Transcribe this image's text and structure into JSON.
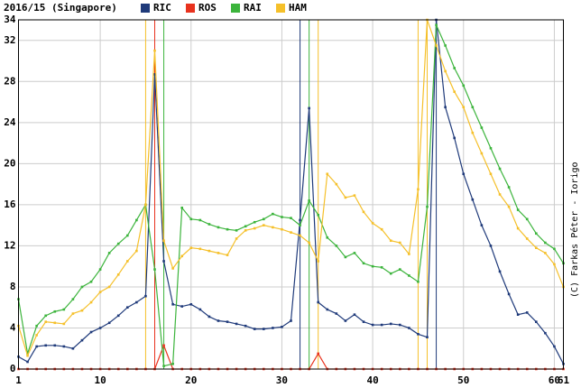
{
  "chart_data": {
    "type": "line",
    "title": "2016/15 (Singapore)",
    "credit": "(C) Farkas Péter - Iorigo",
    "x": [
      1,
      2,
      3,
      4,
      5,
      6,
      7,
      8,
      9,
      10,
      11,
      12,
      13,
      14,
      15,
      16,
      17,
      18,
      19,
      20,
      21,
      22,
      23,
      24,
      25,
      26,
      27,
      28,
      29,
      30,
      31,
      32,
      33,
      34,
      35,
      36,
      37,
      38,
      39,
      40,
      41,
      42,
      43,
      44,
      45,
      46,
      47,
      48,
      49,
      50,
      51,
      52,
      53,
      54,
      55,
      56,
      57,
      58,
      59,
      60,
      61
    ],
    "xlim": [
      1,
      61
    ],
    "xticks": [
      1,
      10,
      20,
      30,
      40,
      50,
      60,
      61
    ],
    "ylim": [
      0,
      34
    ],
    "yticks": [
      0,
      4,
      8,
      12,
      16,
      20,
      24,
      28,
      32,
      34
    ],
    "grid": true,
    "series": [
      {
        "name": "RIC",
        "color": "#1f3a7a",
        "pit_laps": [
          16,
          32,
          47
        ],
        "values": [
          1.2,
          0.7,
          2.2,
          2.3,
          2.3,
          2.2,
          2.0,
          2.8,
          3.6,
          4.0,
          4.5,
          5.2,
          6.0,
          6.5,
          7.1,
          28.7,
          10.5,
          6.3,
          6.1,
          6.3,
          5.8,
          5.1,
          4.7,
          4.6,
          4.4,
          4.2,
          3.9,
          3.9,
          4.0,
          4.1,
          4.7,
          14.5,
          25.4,
          6.5,
          5.8,
          5.4,
          4.7,
          5.3,
          4.6,
          4.3,
          4.3,
          4.4,
          4.3,
          4.0,
          3.4,
          3.1,
          34,
          25.5,
          22.5,
          19,
          16.5,
          14,
          12,
          9.5,
          7.3,
          5.3,
          5.5,
          4.6,
          3.5,
          2.2,
          0.5
        ]
      },
      {
        "name": "ROS",
        "color": "#e8321e",
        "pit_laps": [
          16
        ],
        "values": [
          0,
          0,
          0,
          0,
          0,
          0,
          0,
          0,
          0,
          0,
          0,
          0,
          0,
          0,
          0,
          0,
          2.3,
          0,
          0,
          0,
          0,
          0,
          0,
          0,
          0,
          0,
          0,
          0,
          0,
          0,
          0,
          0,
          0,
          1.5,
          0,
          0,
          0,
          0,
          0,
          0,
          0,
          0,
          0,
          0,
          0,
          0,
          0,
          0,
          0,
          0,
          0,
          0,
          0,
          0,
          0,
          0,
          0,
          0,
          0,
          0,
          0
        ]
      },
      {
        "name": "RAI",
        "color": "#3cb43c",
        "pit_laps": [
          17,
          33,
          46
        ],
        "values": [
          6.8,
          1.5,
          4.2,
          5.2,
          5.6,
          5.8,
          6.8,
          8.0,
          8.5,
          9.7,
          11.3,
          12.2,
          13.0,
          14.5,
          16.0,
          9.7,
          0.3,
          0.5,
          15.7,
          14.6,
          14.5,
          14.1,
          13.8,
          13.6,
          13.5,
          13.9,
          14.3,
          14.6,
          15.1,
          14.8,
          14.7,
          14.0,
          16.4,
          15.0,
          12.8,
          12.0,
          10.9,
          11.3,
          10.3,
          10.0,
          9.9,
          9.3,
          9.7,
          9.1,
          8.5,
          15.8,
          33.5,
          31.5,
          29.3,
          27.6,
          25.5,
          23.5,
          21.5,
          19.5,
          17.7,
          15.5,
          14.6,
          13.2,
          12.3,
          11.7,
          10.3
        ]
      },
      {
        "name": "HAM",
        "color": "#f5c02a",
        "pit_laps": [
          15,
          34,
          45,
          46
        ],
        "values": [
          4.2,
          1.3,
          3.3,
          4.6,
          4.5,
          4.4,
          5.4,
          5.7,
          6.5,
          7.5,
          8.0,
          9.2,
          10.5,
          11.5,
          16,
          31,
          12.5,
          9.8,
          11.0,
          11.8,
          11.7,
          11.5,
          11.3,
          11.1,
          12.7,
          13.5,
          13.7,
          14.0,
          13.8,
          13.6,
          13.3,
          13.0,
          12.3,
          10.5,
          19.0,
          18.0,
          16.7,
          16.9,
          15.3,
          14.2,
          13.6,
          12.5,
          12.3,
          11.2,
          17.5,
          34,
          31.5,
          29.0,
          27.0,
          25.5,
          23.0,
          21.0,
          19.0,
          17.0,
          15.8,
          13.7,
          12.7,
          11.8,
          11.3,
          10.2,
          8.0
        ]
      }
    ]
  }
}
